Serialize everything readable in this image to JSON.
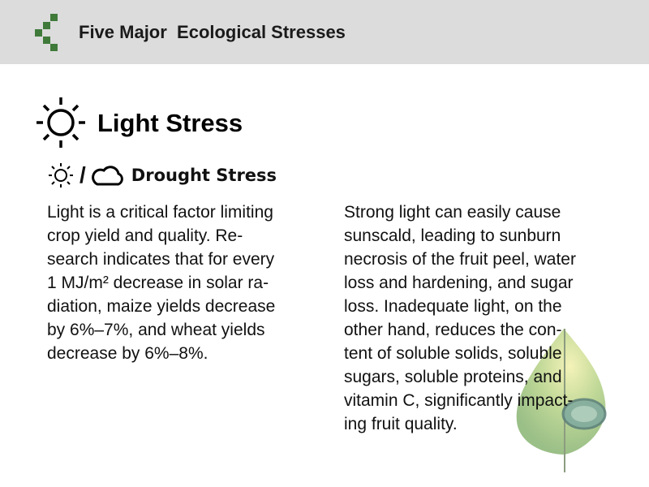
{
  "header": {
    "title": "Five Major  Ecological Stresses",
    "logo_color": "#3f7a3a",
    "background": "#dcdcdc"
  },
  "section": {
    "title": "Light Stress",
    "icon": "sun-icon"
  },
  "subsection": {
    "icon_left": "sun-small-icon",
    "separator": "/",
    "icon_right": "cloud-icon",
    "title": "Drought Stress"
  },
  "left_column": {
    "lines": [
      "Light is a critical factor limiting",
      "crop yield and quality. Re-",
      "search indicates that for every",
      "1 MJ/m² decrease in solar ra-",
      "diation, maize yields decrease",
      "by 6%–7%, and wheat yields",
      "decrease by 6%–8%."
    ]
  },
  "right_column": {
    "lines": [
      "Strong light can easily cause",
      "sunscald, leading to sunburn",
      "necrosis of the fruit peel, water",
      "loss and hardening, and sugar",
      "loss. Inadequate light, on the",
      "other hand, reduces the con-",
      "tent of soluble solids, soluble",
      "sugars, soluble proteins, and",
      "vitamin C, significantly impact-",
      "ing fruit quality."
    ]
  },
  "decoration": {
    "image": "leaf-illustration"
  }
}
